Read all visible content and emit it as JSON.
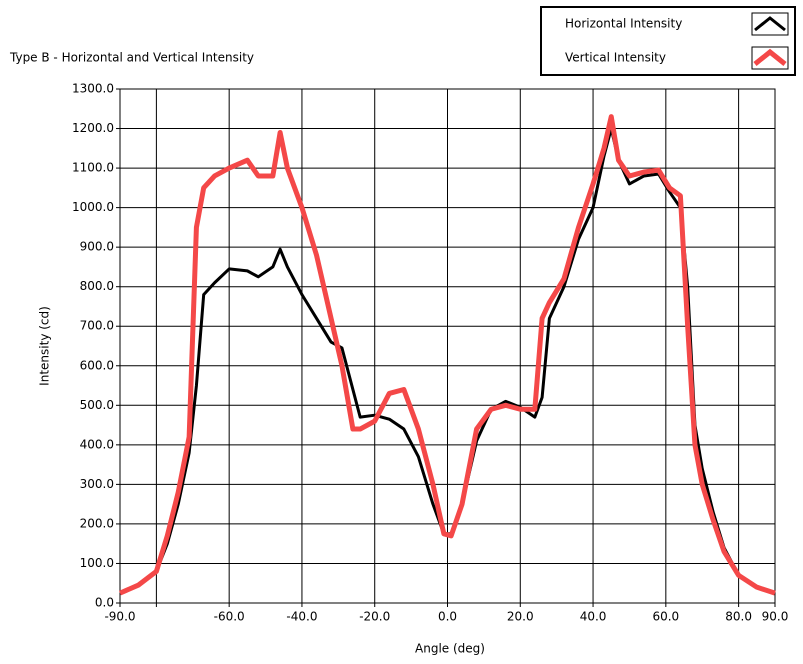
{
  "chart_data": {
    "type": "line",
    "title": "Type B - Horizontal and Vertical Intensity",
    "xlabel": "Angle (deg)",
    "ylabel": "Intensity (cd)",
    "x": [
      -90,
      -85,
      -80,
      -77,
      -74,
      -71,
      -69,
      -67,
      -64,
      -60,
      -55,
      -52,
      -48,
      -46,
      -44,
      -40,
      -36,
      -32,
      -29,
      -26,
      -24,
      -20,
      -16,
      -12,
      -8,
      -4,
      -1,
      1,
      4,
      8,
      12,
      16,
      20,
      24,
      26,
      28,
      32,
      36,
      40,
      43,
      45,
      47,
      50,
      54,
      58,
      61,
      64,
      66,
      68,
      70,
      73,
      76,
      80,
      85,
      90
    ],
    "series": [
      {
        "name": "Horizontal  Intensity",
        "color": "#000000",
        "width": 3,
        "values": [
          25,
          45,
          80,
          150,
          250,
          380,
          550,
          780,
          810,
          845,
          840,
          825,
          850,
          895,
          850,
          780,
          720,
          660,
          645,
          540,
          470,
          475,
          465,
          440,
          370,
          250,
          175,
          175,
          250,
          410,
          490,
          510,
          495,
          470,
          520,
          720,
          800,
          920,
          1000,
          1130,
          1200,
          1120,
          1060,
          1080,
          1085,
          1040,
          1000,
          800,
          450,
          340,
          230,
          140,
          70,
          40,
          25
        ]
      },
      {
        "name": "Vertical Intensity",
        "color": "#f44848",
        "width": 5,
        "values": [
          25,
          45,
          80,
          170,
          280,
          420,
          950,
          1050,
          1080,
          1100,
          1120,
          1080,
          1080,
          1190,
          1100,
          1000,
          880,
          720,
          600,
          440,
          440,
          460,
          530,
          540,
          440,
          300,
          175,
          170,
          250,
          440,
          490,
          500,
          490,
          490,
          720,
          760,
          820,
          950,
          1060,
          1150,
          1230,
          1120,
          1080,
          1090,
          1095,
          1050,
          1030,
          700,
          400,
          300,
          210,
          130,
          70,
          40,
          25
        ]
      }
    ],
    "xlim": [
      -90,
      90
    ],
    "xticks": [
      {
        "value": -90,
        "label": "-90.0"
      },
      {
        "value": -80,
        "label": null
      },
      {
        "value": -60,
        "label": "-60.0"
      },
      {
        "value": -40,
        "label": "-40.0"
      },
      {
        "value": -20,
        "label": "-20.0"
      },
      {
        "value": 0,
        "label": "0.0"
      },
      {
        "value": 20,
        "label": "20.0"
      },
      {
        "value": 40,
        "label": "40.0"
      },
      {
        "value": 60,
        "label": "60.0"
      },
      {
        "value": 80,
        "label": "80.0"
      },
      {
        "value": 90,
        "label": "90.0"
      }
    ],
    "ylim": [
      0,
      1300
    ],
    "yticks": [
      {
        "value": 0,
        "label": "0.0"
      },
      {
        "value": 100,
        "label": "100.0"
      },
      {
        "value": 200,
        "label": "200.0"
      },
      {
        "value": 300,
        "label": "300.0"
      },
      {
        "value": 400,
        "label": "400.0"
      },
      {
        "value": 500,
        "label": "500.0"
      },
      {
        "value": 600,
        "label": "600.0"
      },
      {
        "value": 700,
        "label": "700.0"
      },
      {
        "value": 800,
        "label": "800.0"
      },
      {
        "value": 900,
        "label": "900.0"
      },
      {
        "value": 1000,
        "label": "1000.0"
      },
      {
        "value": 1100,
        "label": "1100.0"
      },
      {
        "value": 1200,
        "label": "1200.0"
      },
      {
        "value": 1300,
        "label": "1300.0"
      }
    ],
    "grid": true,
    "legend": "upper right"
  }
}
